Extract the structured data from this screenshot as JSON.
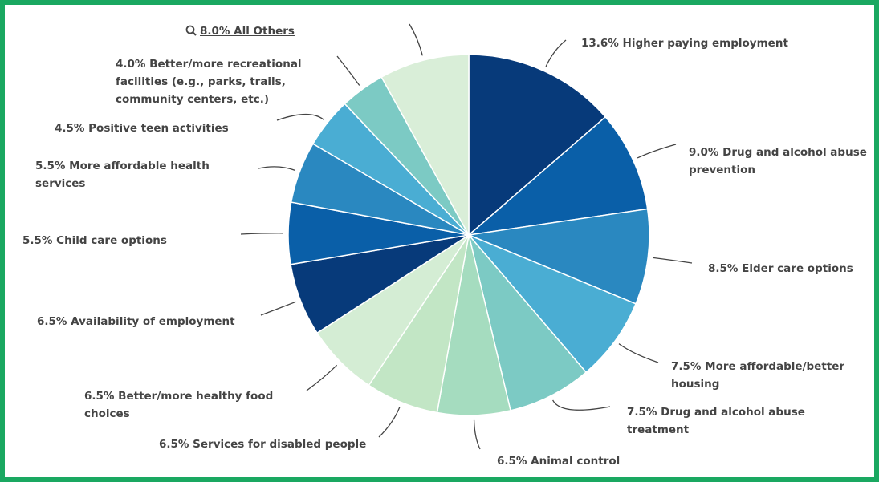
{
  "chart_data": {
    "type": "pie",
    "categories": [
      "Higher paying employment",
      "Drug and alcohol abuse prevention",
      "Elder care options",
      "More affordable/better housing",
      "Drug and alcohol abuse treatment",
      "Animal control",
      "Services for disabled people",
      "Better/more healthy food choices",
      "Availability of employment",
      "Child care options",
      "More affordable health services",
      "Positive teen activities",
      "Better/more recreational facilities (e.g., parks, trails, community centers, etc.)",
      "All Others"
    ],
    "values": [
      13.6,
      9.0,
      8.5,
      7.5,
      7.5,
      6.5,
      6.5,
      6.5,
      6.5,
      5.5,
      5.5,
      4.5,
      4.0,
      8.0
    ],
    "value_labels": [
      "13.6%",
      "9.0%",
      "8.5%",
      "7.5%",
      "7.5%",
      "6.5%",
      "6.5%",
      "6.5%",
      "6.5%",
      "5.5%",
      "5.5%",
      "4.5%",
      "4.0%",
      "8.0%"
    ],
    "colors": [
      "#073a7a",
      "#0a5fa8",
      "#2a88c0",
      "#4aadd3",
      "#7ccac4",
      "#a5dcbf",
      "#c2e6c5",
      "#d4edd4",
      "#073a7a",
      "#0a5fa8",
      "#2a88c0",
      "#4aadd3",
      "#7ccac4",
      "#d9eed8"
    ]
  }
}
